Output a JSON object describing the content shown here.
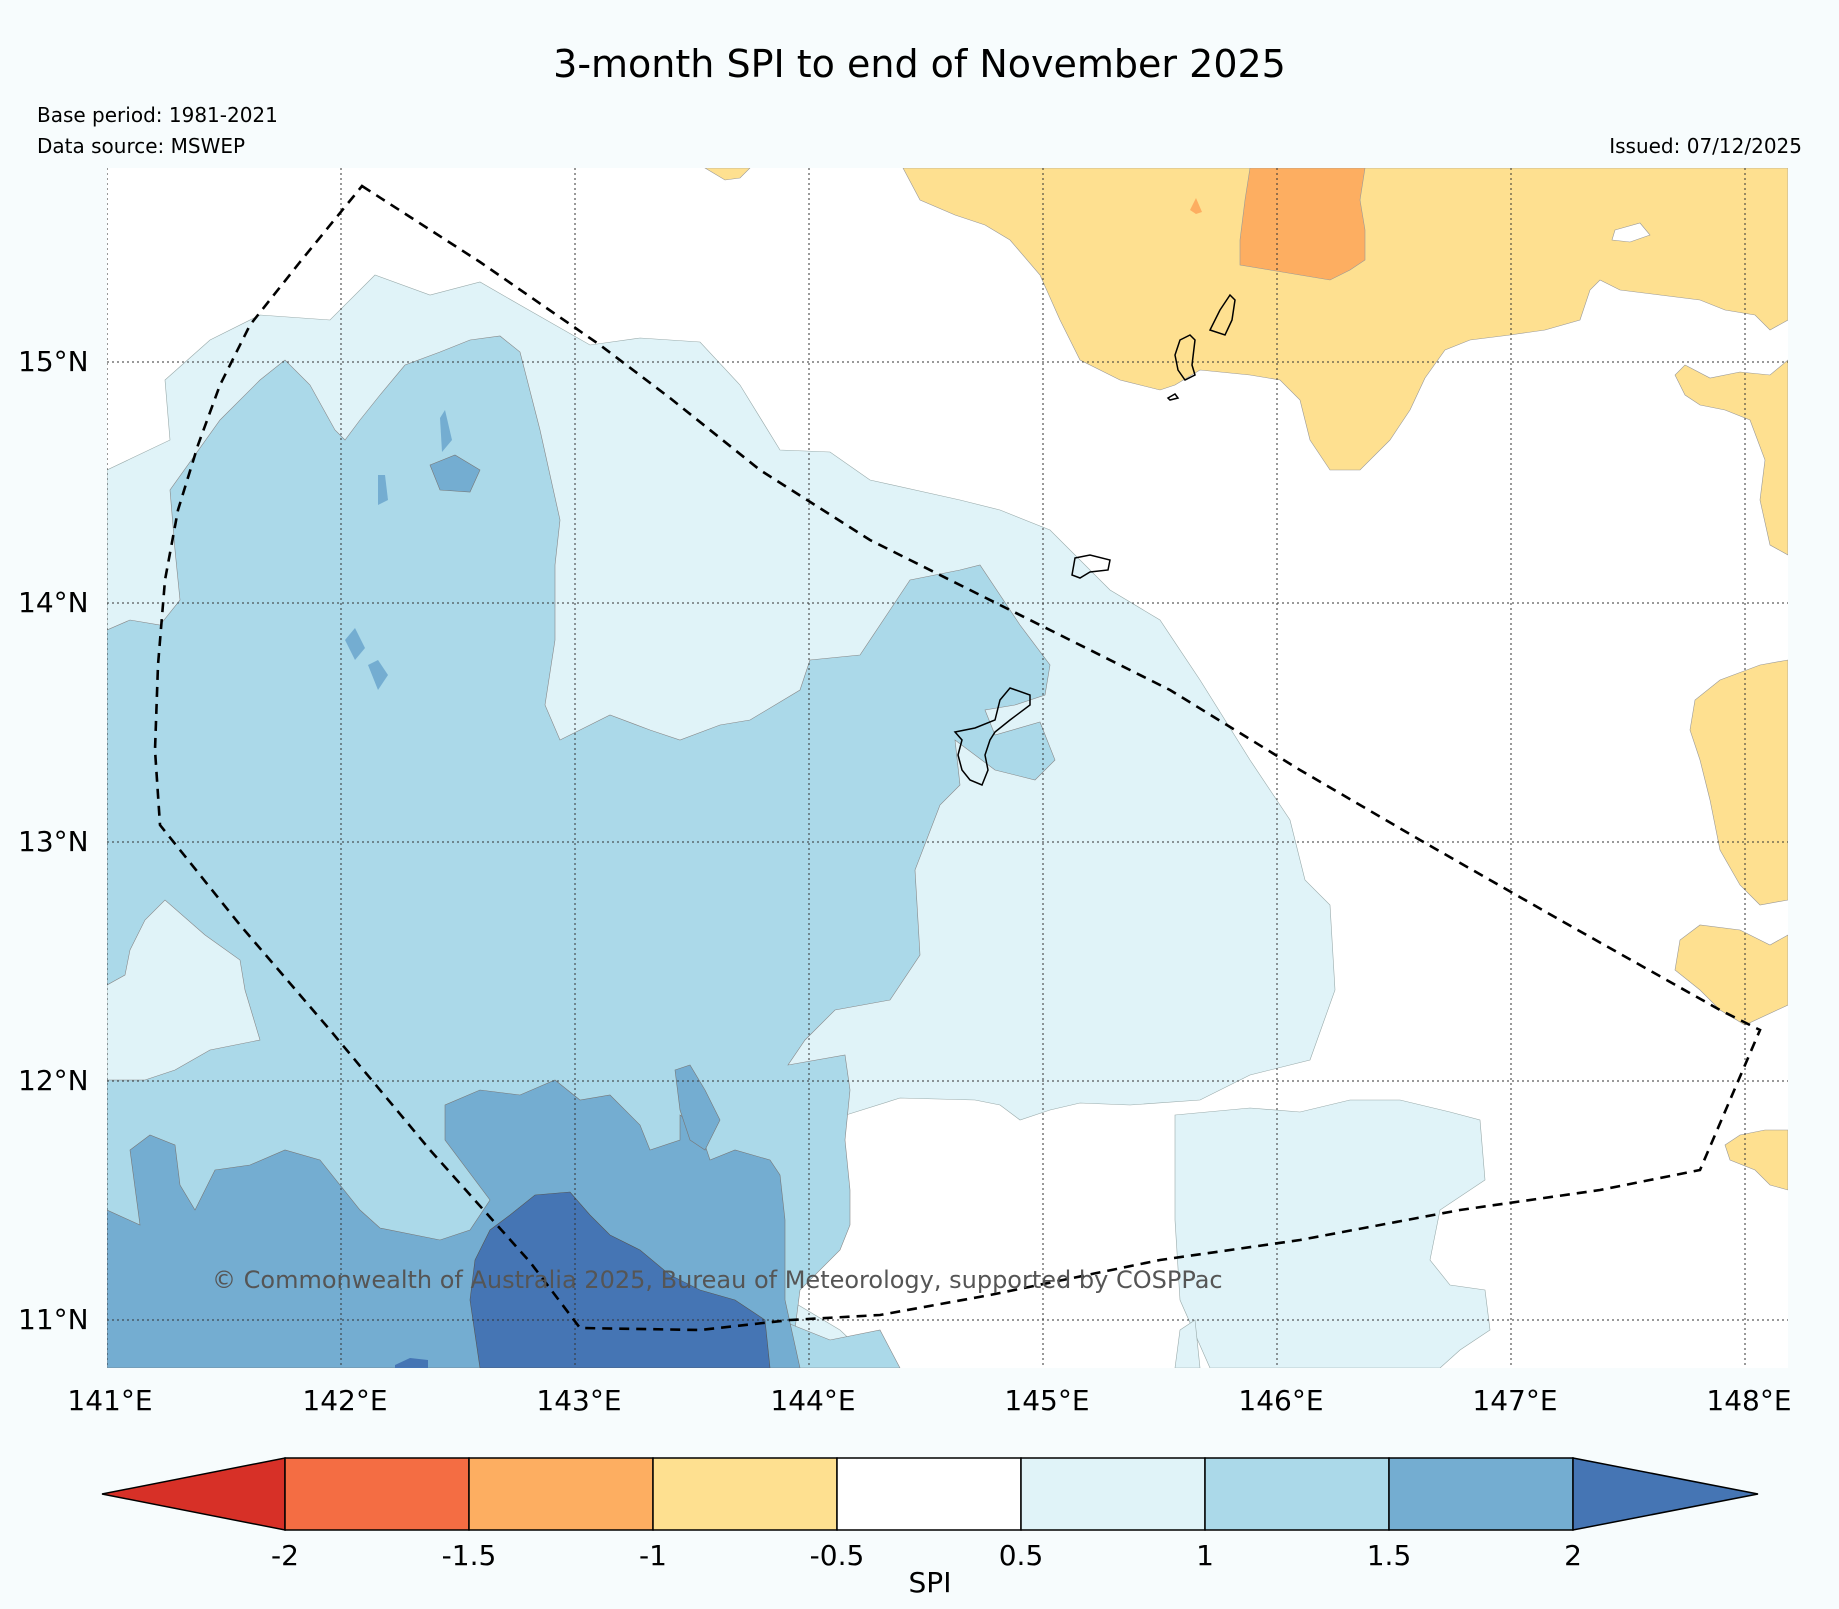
{
  "title": "3-month SPI to end of November 2025",
  "base_period": "Base period: 1981-2021",
  "data_source": "Data source: MSWEP",
  "issued": "Issued: 07/12/2025",
  "copyright": "© Commonwealth of Australia 2025, Bureau of Meteorology, supported by COSPPac",
  "axes": {
    "lon_labels": [
      "141°E",
      "142°E",
      "143°E",
      "144°E",
      "145°E",
      "146°E",
      "147°E",
      "148°E"
    ],
    "lat_labels": [
      "15°N",
      "14°N",
      "13°N",
      "12°N",
      "11°N"
    ]
  },
  "colorbar": {
    "label": "SPI",
    "ticks": [
      "-2",
      "-1.5",
      "-1",
      "-0.5",
      "0.5",
      "1",
      "1.5",
      "2"
    ],
    "colors": [
      "#d73027",
      "#f46d43",
      "#fdae61",
      "#fee090",
      "#ffffff",
      "#e0f3f8",
      "#abd9e9",
      "#74add1",
      "#4575b4"
    ]
  },
  "legend_colors": {
    "wet_strong": "#4575b4",
    "wet_moderate": "#74add1",
    "wet_mild": "#abd9e9",
    "wet_slight": "#e0f3f8",
    "neutral": "#ffffff",
    "dry_slight": "#fee090",
    "dry_mild": "#fdae61"
  }
}
